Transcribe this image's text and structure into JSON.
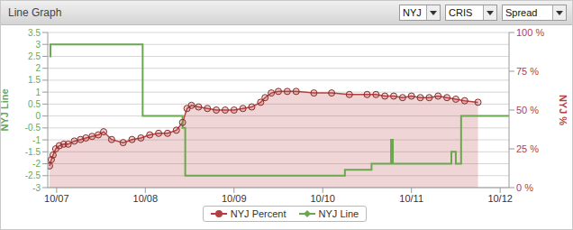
{
  "header": {
    "title": "Line Graph",
    "selects": [
      "NYJ",
      "CRIS",
      "Spread"
    ]
  },
  "chart_data": {
    "type": "line",
    "xlim": [
      6.9,
      12.1
    ],
    "xticks": [
      {
        "value": 7,
        "label": "10/07"
      },
      {
        "value": 8,
        "label": "10/08"
      },
      {
        "value": 9,
        "label": "10/09"
      },
      {
        "value": 10,
        "label": "10/10"
      },
      {
        "value": 11,
        "label": "10/11"
      },
      {
        "value": 12,
        "label": "10/12"
      }
    ],
    "ylim": [
      -3,
      3.5
    ],
    "yticks": [
      -3,
      -2.5,
      -2,
      -1.5,
      -1,
      -0.5,
      0,
      0.5,
      1,
      1.5,
      2,
      2.5,
      3,
      3.5
    ],
    "y2lim": [
      0,
      100
    ],
    "y2ticks": [
      {
        "value": 0,
        "label": "0 %"
      },
      {
        "value": 25,
        "label": "25 %"
      },
      {
        "value": 50,
        "label": "50 %"
      },
      {
        "value": 75,
        "label": "75 %"
      },
      {
        "value": 100,
        "label": "100 %"
      }
    ],
    "ylabel": "NYJ Line",
    "y2label": "NYJ %",
    "grid": true,
    "legend": "bottom",
    "series": [
      {
        "name": "NYJ Percent",
        "type": "area",
        "axis": "y2",
        "color": "#b5403f",
        "marker": "circle",
        "x": [
          6.92,
          6.94,
          6.96,
          6.99,
          7.03,
          7.08,
          7.13,
          7.2,
          7.27,
          7.33,
          7.4,
          7.47,
          7.53,
          7.62,
          7.75,
          7.85,
          7.95,
          8.05,
          8.15,
          8.25,
          8.35,
          8.42,
          8.47,
          8.52,
          8.6,
          8.7,
          8.8,
          8.9,
          9.0,
          9.1,
          9.2,
          9.3,
          9.35,
          9.42,
          9.5,
          9.6,
          9.7,
          9.9,
          10.1,
          10.3,
          10.5,
          10.6,
          10.7,
          10.8,
          10.9,
          11.0,
          11.1,
          11.2,
          11.3,
          11.4,
          11.5,
          11.6,
          11.75
        ],
        "values": [
          14,
          18,
          21,
          25,
          27,
          28,
          28,
          30,
          31,
          32,
          33,
          34,
          36,
          31,
          29,
          31,
          32,
          34,
          35,
          35,
          37,
          42,
          51,
          53,
          52,
          51,
          50,
          50,
          50,
          51,
          52,
          55,
          58,
          61,
          62,
          62,
          62,
          61,
          61,
          60,
          60,
          60,
          59,
          59,
          58,
          59,
          58,
          58,
          59,
          58,
          57,
          56,
          55
        ]
      },
      {
        "name": "NYJ Line",
        "type": "step",
        "axis": "y",
        "color": "#6aa84f",
        "x": [
          6.92,
          6.93,
          7.97,
          8.42,
          8.45,
          10.25,
          10.55,
          10.77,
          10.79,
          11.45,
          11.5,
          11.56,
          12.1
        ],
        "values": [
          2.5,
          3,
          0,
          -0.5,
          -2.5,
          -2.25,
          -2,
          -1,
          -2,
          -1.5,
          -2,
          0,
          0
        ]
      }
    ]
  }
}
